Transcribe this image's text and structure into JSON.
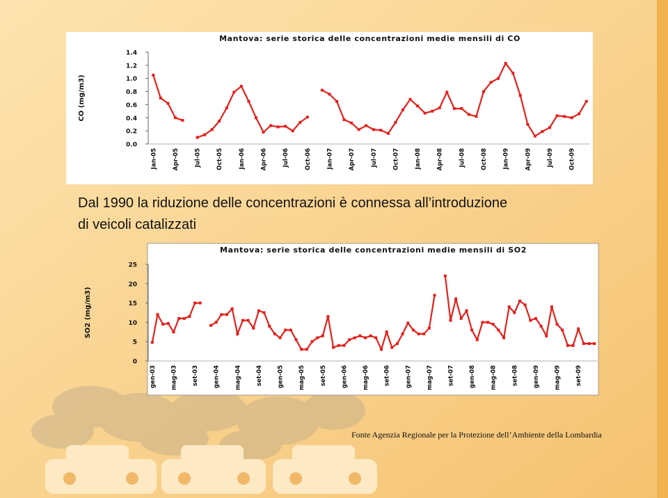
{
  "caption": "Dal 1990 la riduzione delle concentrazioni è connessa all’introduzione di veicoli catalizzati",
  "source": "Fonte Agenzia Regionale per la Protezione dell’Ambiente della Lombardia",
  "chart_data": [
    {
      "type": "line",
      "title": "Mantova: serie storica delle concentrazioni medie mensili di CO",
      "y_label": "CO (mg/m3)",
      "color": "#e3201b",
      "categories": [
        "Jan-05",
        null,
        null,
        "Apr-05",
        null,
        null,
        "Jul-05",
        null,
        null,
        "Oct-05",
        null,
        null,
        "Jan-06",
        null,
        null,
        "Apr-06",
        null,
        null,
        "Jul-06",
        null,
        null,
        "Oct-06",
        null,
        null,
        "Jan-07",
        null,
        null,
        "Apr-07",
        null,
        null,
        "Jul-07",
        null,
        null,
        "Oct-07",
        null,
        null,
        "Jan-08",
        null,
        null,
        "Apr-08",
        null,
        null,
        "Jul-08",
        null,
        null,
        "Oct-08",
        null,
        null,
        "Jan-09",
        null,
        null,
        "Apr-09",
        null,
        null,
        "Jul-09",
        null,
        null,
        "Oct-09",
        null,
        null
      ],
      "values": [
        1.05,
        0.7,
        0.62,
        0.4,
        0.36,
        null,
        0.1,
        0.14,
        0.22,
        0.35,
        0.55,
        0.79,
        0.88,
        0.65,
        0.4,
        0.18,
        0.28,
        0.26,
        0.27,
        0.2,
        0.33,
        0.41,
        null,
        0.82,
        0.76,
        0.65,
        0.37,
        0.32,
        0.22,
        0.28,
        0.22,
        0.21,
        0.16,
        0.33,
        0.52,
        0.68,
        0.58,
        0.47,
        0.5,
        0.55,
        0.79,
        0.54,
        0.54,
        0.45,
        0.42,
        0.8,
        0.94,
        1.0,
        1.23,
        1.08,
        0.74,
        0.3,
        0.12,
        0.19,
        0.25,
        0.43,
        0.42,
        0.4,
        0.46,
        0.65
      ],
      "ylim": [
        0,
        1.4
      ],
      "yticks": [
        {
          "value": 0,
          "label": "0.0"
        },
        {
          "value": 0.2,
          "label": "0.2"
        },
        {
          "value": 0.4,
          "label": "0.4"
        },
        {
          "value": 0.6,
          "label": "0.6"
        },
        {
          "value": 0.8,
          "label": "0.8"
        },
        {
          "value": 1,
          "label": "1.0"
        },
        {
          "value": 1.2,
          "label": "1.2"
        },
        {
          "value": 1.4,
          "label": "1.4"
        }
      ]
    },
    {
      "type": "line",
      "title": "Mantova: serie storica delle concentrazioni medie mensili di SO2",
      "y_label": "SO2 (mg/m3)",
      "color": "#e3201b",
      "categories": [
        "gen-03",
        null,
        null,
        null,
        "mag-03",
        null,
        null,
        null,
        "set-03",
        null,
        null,
        null,
        "gen-04",
        null,
        null,
        null,
        "mag-04",
        null,
        null,
        null,
        "set-04",
        null,
        null,
        null,
        "gen-05",
        null,
        null,
        null,
        "mag-05",
        null,
        null,
        null,
        "set-05",
        null,
        null,
        null,
        "gen-06",
        null,
        null,
        null,
        "mag-06",
        null,
        null,
        null,
        "set-06",
        null,
        null,
        null,
        "gen-07",
        null,
        null,
        null,
        "mag-07",
        null,
        null,
        null,
        "set-07",
        null,
        null,
        null,
        "gen-08",
        null,
        null,
        null,
        "mag-08",
        null,
        null,
        null,
        "set-08",
        null,
        null,
        null,
        "gen-09",
        null,
        null,
        null,
        "mag-09",
        null,
        null,
        null,
        "set-09",
        null,
        null,
        null
      ],
      "values": [
        4.8,
        12,
        9.5,
        9.7,
        7.5,
        11,
        11,
        11.5,
        15,
        15,
        null,
        9.2,
        10,
        12,
        12,
        13.5,
        7,
        10.5,
        10.5,
        8.5,
        13,
        12.5,
        9,
        7,
        6,
        8,
        8,
        5.5,
        3,
        3,
        5,
        6,
        6.5,
        11.5,
        3.5,
        4,
        4,
        5.5,
        6,
        6.5,
        6,
        6.5,
        6,
        3,
        7.5,
        3.5,
        4.5,
        7,
        9.8,
        8,
        7,
        7,
        8.5,
        17,
        null,
        22,
        10.5,
        16,
        11,
        13,
        8,
        5.5,
        10,
        10,
        9.5,
        8,
        6,
        14,
        12.5,
        15.5,
        14.5,
        10.5,
        11,
        9,
        6.5,
        14,
        9.5,
        8,
        4,
        4,
        8.3,
        4.5,
        4.5,
        4.5
      ],
      "ylim": [
        0,
        25
      ],
      "yticks": [
        0,
        5,
        10,
        15,
        20,
        25
      ]
    }
  ]
}
